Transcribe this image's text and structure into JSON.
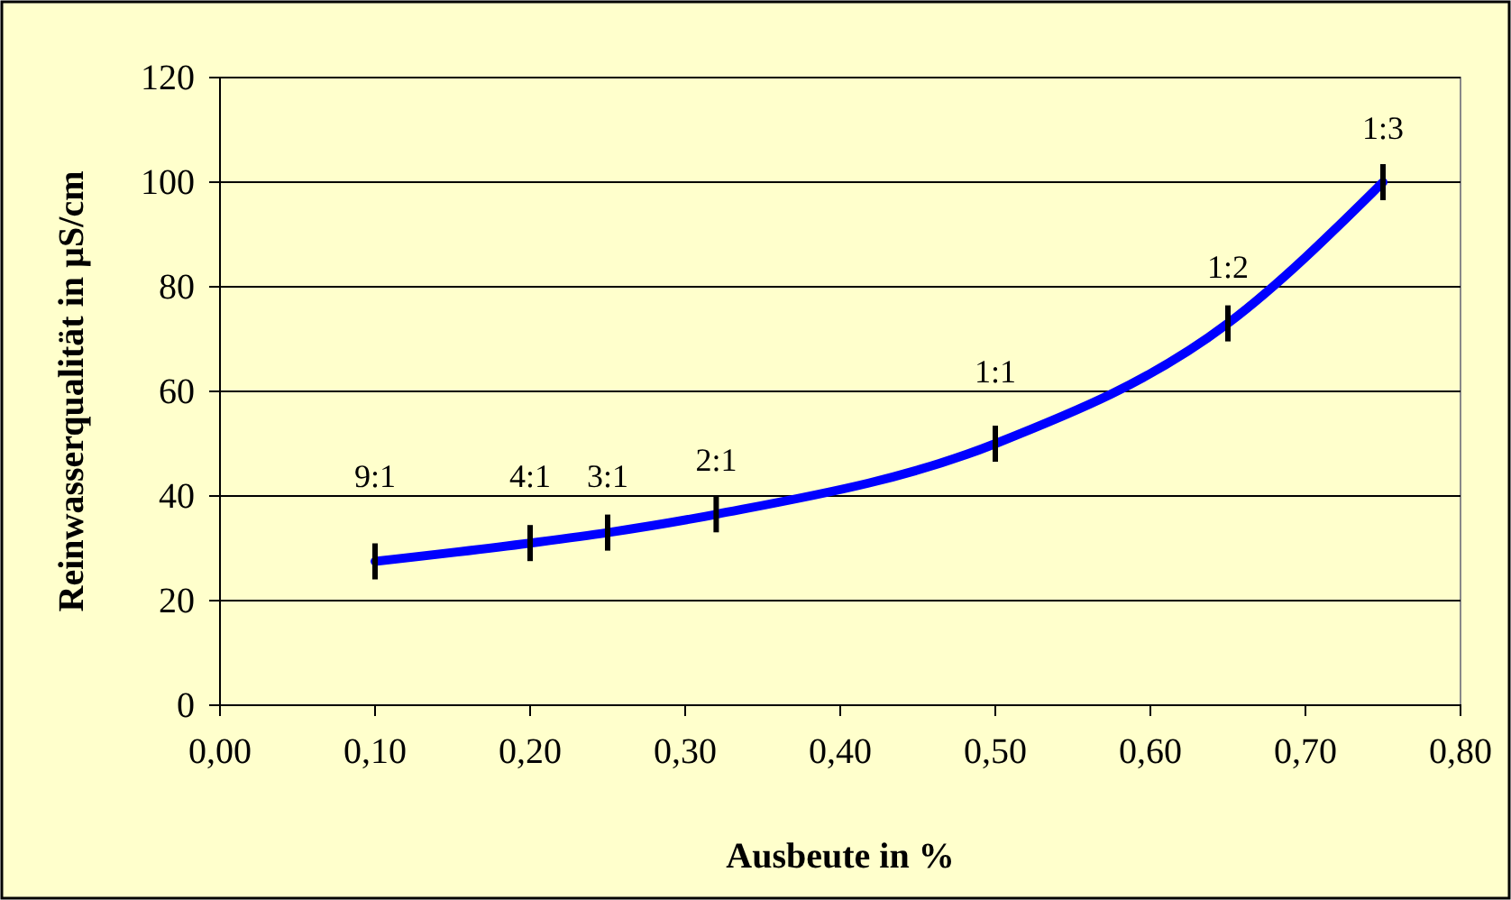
{
  "chart_data": {
    "type": "line",
    "xlabel": "Ausbeute in %",
    "ylabel": "Reinwasserqualität in µS/cm",
    "x": [
      0.1,
      0.2,
      0.25,
      0.32,
      0.5,
      0.65,
      0.75
    ],
    "series": [
      {
        "color": "#0000ff",
        "values": [
          27.5,
          31,
          33,
          36.5,
          50,
          73,
          100
        ]
      }
    ],
    "xlim": [
      0,
      0.8
    ],
    "xticks": [
      {
        "value": 0,
        "label": "0,00"
      },
      {
        "value": 0.1,
        "label": "0,10"
      },
      {
        "value": 0.2,
        "label": "0,20"
      },
      {
        "value": 0.3,
        "label": "0,30"
      },
      {
        "value": 0.4,
        "label": "0,40"
      },
      {
        "value": 0.5,
        "label": "0,50"
      },
      {
        "value": 0.6,
        "label": "0,60"
      },
      {
        "value": 0.7,
        "label": "0,70"
      },
      {
        "value": 0.8,
        "label": "0,80"
      }
    ],
    "ylim": [
      0,
      120
    ],
    "yticks": [
      0,
      20,
      40,
      60,
      80,
      100,
      120
    ],
    "grid": "y",
    "annotations": [
      {
        "text": "9:1",
        "x": 0.1,
        "y": 27.5
      },
      {
        "text": "4:1",
        "x": 0.2,
        "y": 31
      },
      {
        "text": "3:1",
        "x": 0.25,
        "y": 33
      },
      {
        "text": "2:1",
        "x": 0.32,
        "y": 36.5
      },
      {
        "text": "1:1",
        "x": 0.5,
        "y": 50
      },
      {
        "text": "1:2",
        "x": 0.65,
        "y": 73
      },
      {
        "text": "1:3",
        "x": 0.75,
        "y": 100
      }
    ]
  }
}
